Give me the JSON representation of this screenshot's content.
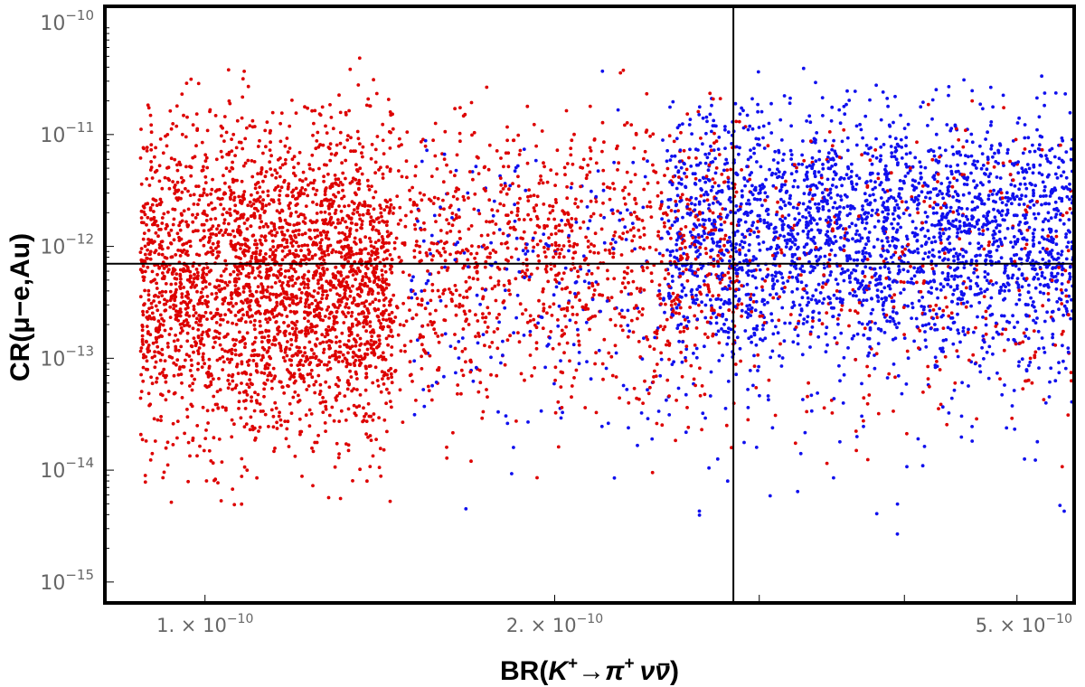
{
  "chart_data": {
    "type": "scatter",
    "title": "",
    "xlabel": {
      "prefix": "BR(",
      "K": "K",
      "K_sup": "+",
      "arrow": "→",
      "pi": "π",
      "pi_sup": "+",
      "nu": "ν",
      "nubar": "ν",
      "suffix": ")"
    },
    "ylabel": "CR(μ−e,Au)",
    "x_scale": "log",
    "y_scale": "log",
    "xlim": [
      8.2e-11,
      5.6e-10
    ],
    "ylim": [
      6.5e-16,
      1.4e-10
    ],
    "x_ticks": [
      {
        "value": 1e-10,
        "mantissa": "1.",
        "times": "×",
        "base": "10",
        "exp": "−10"
      },
      {
        "value": 2e-10,
        "mantissa": "2.",
        "times": "×",
        "base": "10",
        "exp": "−10"
      },
      {
        "value": 5e-10,
        "mantissa": "5.",
        "times": "×",
        "base": "10",
        "exp": "−10"
      }
    ],
    "y_ticks": [
      {
        "value": 1e-10,
        "base": "10",
        "exp": "−10"
      },
      {
        "value": 1e-11,
        "base": "10",
        "exp": "−11"
      },
      {
        "value": 1e-12,
        "base": "10",
        "exp": "−12"
      },
      {
        "value": 1e-13,
        "base": "10",
        "exp": "−13"
      },
      {
        "value": 1e-14,
        "base": "10",
        "exp": "−14"
      },
      {
        "value": 1e-15,
        "base": "10",
        "exp": "−15"
      }
    ],
    "reference_lines": [
      {
        "orientation": "vertical",
        "value": 2.85e-10
      },
      {
        "orientation": "horizontal",
        "value": 7e-13
      }
    ],
    "series": [
      {
        "color": "#dd0000",
        "regions": [
          {
            "x": [
              8.8e-11,
              1.45e-10
            ],
            "y": [
              3e-15,
              6e-11
            ],
            "weight": 0.46
          },
          {
            "x": [
              1.05e-10,
              2.9e-10
            ],
            "y": [
              1.5e-14,
              5e-11
            ],
            "weight": 0.22
          },
          {
            "x": [
              1.45e-10,
              5.6e-10
            ],
            "y": [
              5e-15,
              6e-11
            ],
            "weight": 0.14
          }
        ]
      },
      {
        "color": "#1010ee",
        "regions": [
          {
            "x": [
              2.5e-10,
              5.6e-10
            ],
            "y": [
              4e-14,
              5e-11
            ],
            "weight": 0.5
          },
          {
            "x": [
              1.5e-10,
              5.6e-10
            ],
            "y": [
              2e-15,
              6e-11
            ],
            "weight": 0.14
          }
        ]
      }
    ],
    "colors": {
      "red_series": "#dd0000",
      "blue_series": "#1010ee",
      "frame": "#000000",
      "tick_text": "#666666"
    }
  }
}
